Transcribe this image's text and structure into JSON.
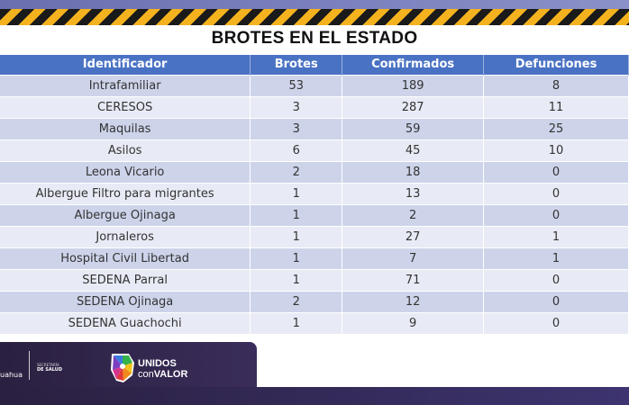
{
  "title": "BROTES EN EL ESTADO",
  "columns": [
    "Identificador",
    "Brotes",
    "Confirmados",
    "Defunciones"
  ],
  "rows": [
    [
      "Intrafamiliar",
      "53",
      "189",
      "8"
    ],
    [
      "CERESOS",
      "3",
      "287",
      "11"
    ],
    [
      "Maquilas",
      "3",
      "59",
      "25"
    ],
    [
      "Asilos",
      "6",
      "45",
      "10"
    ],
    [
      "Leona Vicario",
      "2",
      "18",
      "0"
    ],
    [
      "Albergue Filtro para migrantes",
      "1",
      "13",
      "0"
    ],
    [
      "Albergue Ojinaga",
      "1",
      "2",
      "0"
    ],
    [
      "Jornaleros",
      "1",
      "27",
      "1"
    ],
    [
      "Hospital Civil Libertad",
      "1",
      "7",
      "1"
    ],
    [
      "SEDENA Parral",
      "1",
      "71",
      "0"
    ],
    [
      "SEDENA Ojinaga",
      "2",
      "12",
      "0"
    ],
    [
      "SEDENA Guachochi",
      "1",
      "9",
      "0"
    ]
  ],
  "footer": {
    "gob": "uahua",
    "secretaria_line1": "SECRETARÍA",
    "secretaria_line2": "DE SALUD",
    "campaign_line1": "UNIDOS",
    "campaign_con": "con",
    "campaign_valor": "VALOR"
  },
  "colors": {
    "header": "#4a72c4",
    "row_dark": "#cdd4ea",
    "row_light": "#e8ebf5",
    "stripe_yellow": "#f4b21e",
    "footer": "#2a2040"
  }
}
